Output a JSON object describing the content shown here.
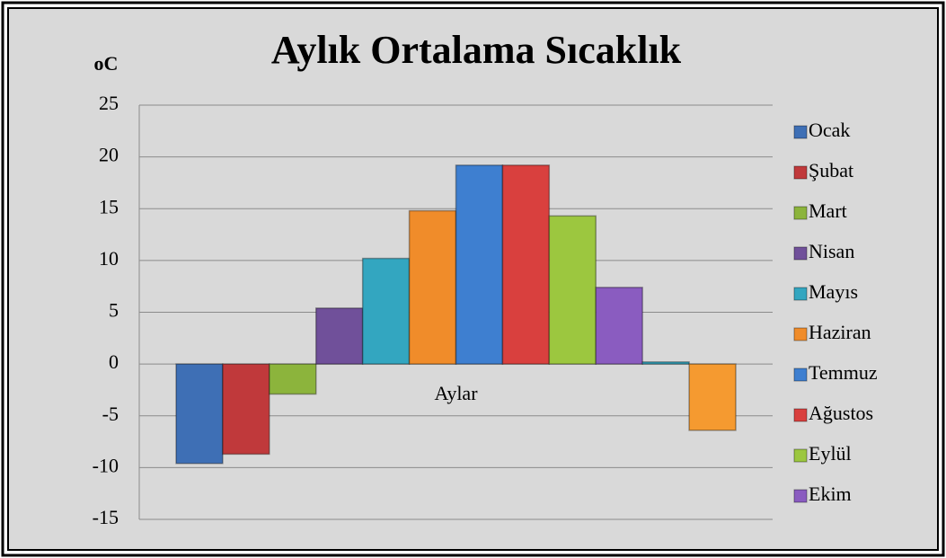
{
  "chart_data": {
    "type": "bar",
    "title": "Aylık Ortalama Sıcaklık",
    "y_label": "oC",
    "categories": [
      "Aylar"
    ],
    "series": [
      {
        "name": "Ocak",
        "color": "#3e6fb5",
        "values": [
          -9.6
        ]
      },
      {
        "name": "Şubat",
        "color": "#c0393b",
        "values": [
          -8.7
        ]
      },
      {
        "name": "Mart",
        "color": "#8cb43c",
        "values": [
          -2.9
        ]
      },
      {
        "name": "Nisan",
        "color": "#70509a",
        "values": [
          5.4
        ]
      },
      {
        "name": "Mayıs",
        "color": "#33a6c0",
        "values": [
          10.2
        ]
      },
      {
        "name": "Haziran",
        "color": "#f08c2a",
        "values": [
          14.8
        ]
      },
      {
        "name": "Temmuz",
        "color": "#3e7fd0",
        "values": [
          19.2
        ]
      },
      {
        "name": "Ağustos",
        "color": "#d9403e",
        "values": [
          19.2
        ]
      },
      {
        "name": "Eylül",
        "color": "#9cc73f",
        "values": [
          14.3
        ]
      },
      {
        "name": "Ekim",
        "color": "#8a5cc0",
        "values": [
          7.4
        ]
      },
      {
        "color": "#33a6c0",
        "values": [
          0.2
        ]
      },
      {
        "color": "#f59a30",
        "values": [
          -6.4
        ]
      }
    ],
    "ylim": [
      -15,
      25
    ],
    "yticks": [
      -15,
      -10,
      -5,
      0,
      5,
      10,
      15,
      20,
      25
    ],
    "grid": true,
    "legend": "right"
  }
}
